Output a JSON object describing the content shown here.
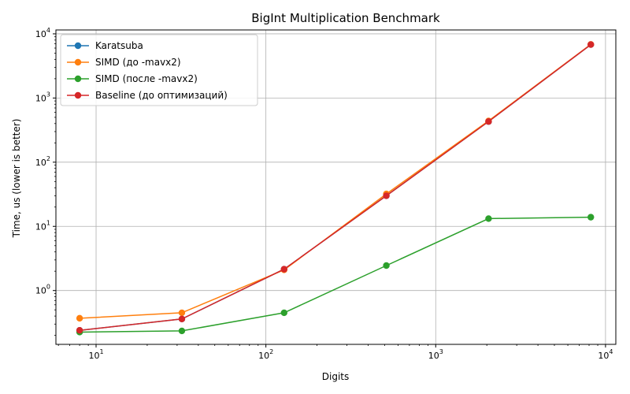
{
  "chart_data": {
    "type": "line",
    "title": "BigInt Multiplication Benchmark",
    "xlabel": "Digits",
    "ylabel": "Time, us (lower is better)",
    "xscale": "log",
    "yscale": "log",
    "xlim": [
      5.8,
      11500
    ],
    "ylim": [
      0.145,
      11500
    ],
    "x_ticks": [
      {
        "value": 10,
        "base": "10",
        "exp": "1"
      },
      {
        "value": 100,
        "base": "10",
        "exp": "2"
      },
      {
        "value": 1000,
        "base": "10",
        "exp": "3"
      },
      {
        "value": 10000,
        "base": "10",
        "exp": "4"
      }
    ],
    "y_ticks": [
      {
        "value": 1,
        "base": "10",
        "exp": "0"
      },
      {
        "value": 10,
        "base": "10",
        "exp": "1"
      },
      {
        "value": 100,
        "base": "10",
        "exp": "2"
      },
      {
        "value": 1000,
        "base": "10",
        "exp": "3"
      },
      {
        "value": 10000,
        "base": "10",
        "exp": "4"
      }
    ],
    "grid": true,
    "legend_position": "top-left",
    "x": [
      8,
      32,
      128,
      512,
      2048,
      8192
    ],
    "series": [
      {
        "name": "Karatsuba",
        "color": "#1f77b4",
        "values": [
          0.24,
          0.36,
          2.15,
          30,
          430,
          6800
        ]
      },
      {
        "name": "SIMD (до -mavx2)",
        "color": "#ff7f0e",
        "values": [
          0.37,
          0.45,
          2.1,
          32,
          440,
          6850
        ]
      },
      {
        "name": "SIMD (после -mavx2)",
        "color": "#2ca02c",
        "values": [
          0.225,
          0.235,
          0.45,
          2.45,
          13.2,
          13.9
        ]
      },
      {
        "name": "Baseline (до оптимизаций)",
        "color": "#d62728",
        "values": [
          0.24,
          0.36,
          2.15,
          30,
          430,
          6800
        ]
      }
    ]
  }
}
